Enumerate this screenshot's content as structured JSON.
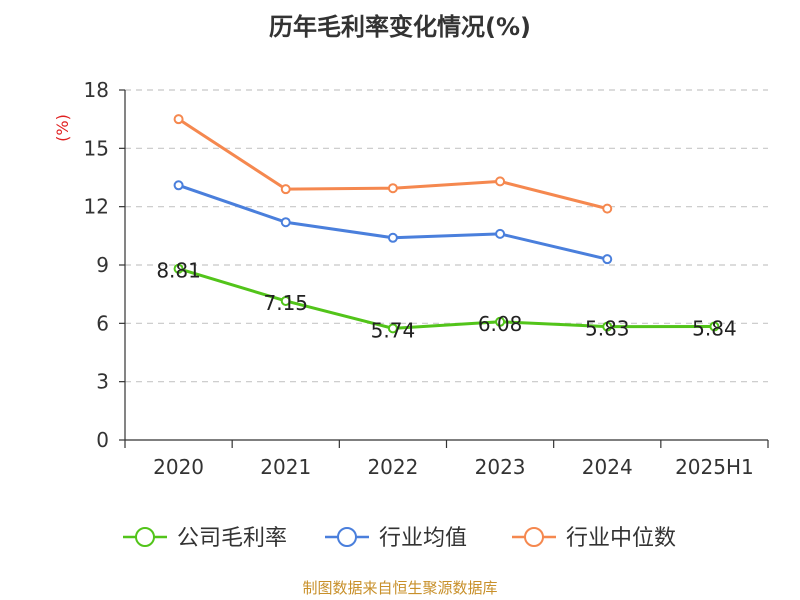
{
  "chart_data": {
    "type": "line",
    "title": "历年毛利率变化情况(%)",
    "ylabel": "(%)",
    "xlabel": "",
    "categories": [
      "2020",
      "2021",
      "2022",
      "2023",
      "2024",
      "2025H1"
    ],
    "ylim": [
      0,
      18
    ],
    "yticks": [
      0,
      3,
      6,
      9,
      12,
      15,
      18
    ],
    "grid": true,
    "legend_position": "bottom",
    "series": [
      {
        "name": "公司毛利率",
        "color": "#52c41a",
        "values": [
          8.81,
          7.15,
          5.74,
          6.08,
          5.83,
          5.84
        ],
        "labels": [
          "8.81",
          "7.15",
          "5.74",
          "6.08",
          "5.83",
          "5.84"
        ]
      },
      {
        "name": "行业均值",
        "color": "#4a7fdc",
        "values": [
          13.1,
          11.2,
          10.4,
          10.6,
          9.3,
          null
        ]
      },
      {
        "name": "行业中位数",
        "color": "#f5884f",
        "values": [
          16.5,
          12.9,
          12.95,
          13.3,
          11.9,
          null
        ]
      }
    ],
    "source": "制图数据来自恒生聚源数据库"
  }
}
